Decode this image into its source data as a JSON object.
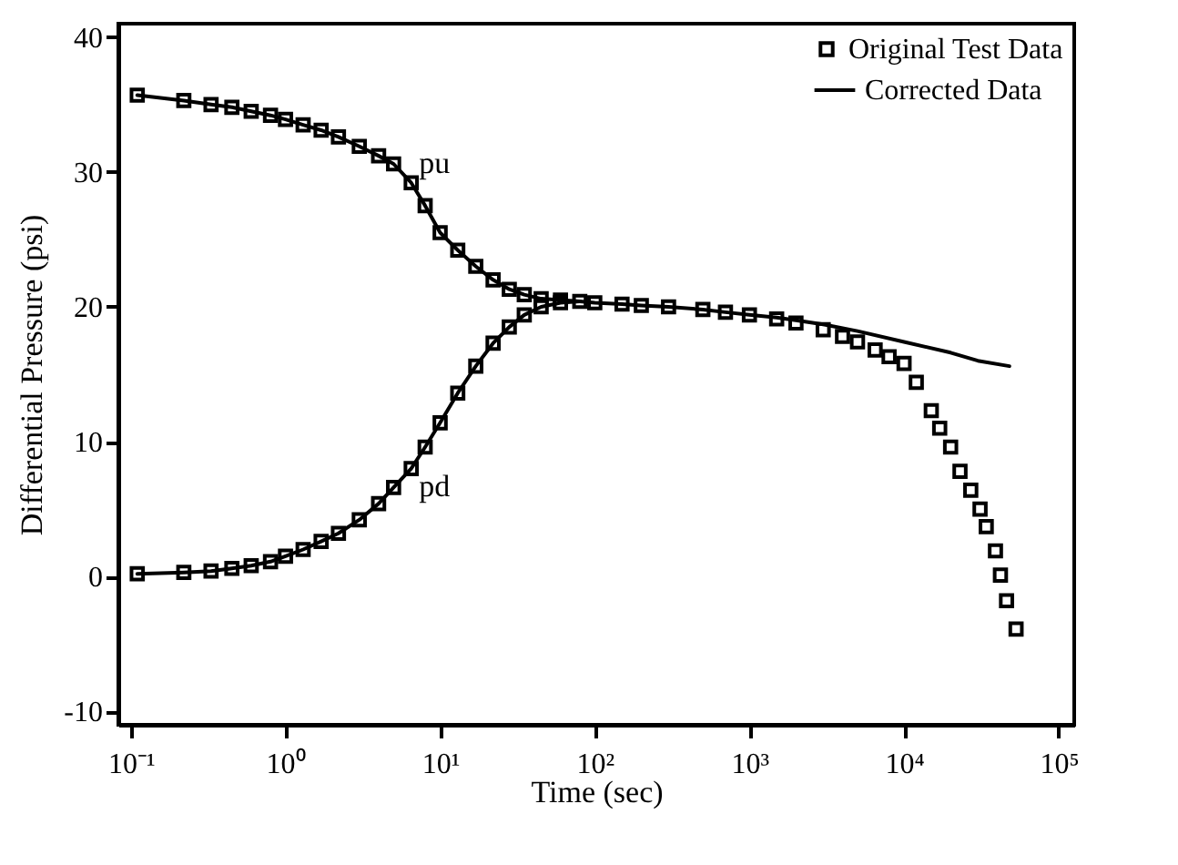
{
  "chart_data": {
    "type": "scatter",
    "xlabel": "Time (sec)",
    "ylabel": "Differential Pressure (psi)",
    "log": "x",
    "xlim": [
      0.083,
      126000
    ],
    "xticks": [
      {
        "value": 0.1,
        "label": "10⁻¹"
      },
      {
        "value": 1,
        "label": "10⁰"
      },
      {
        "value": 10,
        "label": "10¹"
      },
      {
        "value": 100,
        "label": "10²"
      },
      {
        "value": 1000,
        "label": "10³"
      },
      {
        "value": 10000,
        "label": "10⁴"
      },
      {
        "value": 100000,
        "label": "10⁵"
      }
    ],
    "ylim": [
      -11,
      41
    ],
    "yticks": [
      -10,
      0,
      10,
      20,
      30,
      40
    ],
    "grid": false,
    "legend": "top right",
    "annotations": [
      {
        "text": "pu",
        "x": 5,
        "y": 30.6
      },
      {
        "text": "pd",
        "x": 5,
        "y": 6.6
      }
    ],
    "series": [
      {
        "name": "Original Test Data",
        "marker": "square",
        "color": "#000000",
        "x": [
          0.11,
          0.22,
          0.33,
          0.45,
          0.6,
          0.8,
          1,
          1.3,
          1.7,
          2.2,
          3,
          4,
          5,
          6.5,
          8,
          10,
          13,
          17,
          22,
          28,
          35,
          45,
          60,
          0.11,
          0.22,
          0.33,
          0.45,
          0.6,
          0.8,
          1,
          1.3,
          1.7,
          2.2,
          3,
          4,
          5,
          6.5,
          8,
          10,
          13,
          17,
          22,
          28,
          35,
          45,
          60,
          80,
          100,
          150,
          200,
          300,
          500,
          700,
          1000,
          1500,
          2000,
          3000,
          4000,
          5000,
          6500,
          8000,
          10000,
          12000,
          15000,
          17000,
          20000,
          23000,
          27000,
          31000,
          34000,
          39000,
          42000,
          46000,
          53000
        ],
        "values": [
          35.7,
          35.3,
          35.0,
          34.8,
          34.5,
          34.2,
          33.9,
          33.5,
          33.1,
          32.6,
          31.9,
          31.2,
          30.6,
          29.2,
          27.5,
          25.5,
          24.2,
          23.0,
          22.0,
          21.3,
          20.9,
          20.6,
          20.5,
          0.2,
          0.3,
          0.4,
          0.6,
          0.8,
          1.1,
          1.5,
          2.0,
          2.6,
          3.2,
          4.2,
          5.4,
          6.6,
          8.0,
          9.6,
          11.4,
          13.6,
          15.6,
          17.3,
          18.5,
          19.4,
          20.0,
          20.3,
          20.4,
          20.3,
          20.2,
          20.1,
          20.0,
          19.8,
          19.6,
          19.4,
          19.1,
          18.8,
          18.3,
          17.8,
          17.4,
          16.8,
          16.3,
          15.8,
          14.4,
          12.3,
          11.0,
          9.6,
          7.8,
          6.4,
          5.0,
          3.7,
          1.9,
          0.1,
          -1.8,
          -3.9
        ]
      },
      {
        "name": "Corrected Data",
        "type": "line",
        "line_style": "solid",
        "marker": "none",
        "color": "#000000",
        "x": [
          0.11,
          0.22,
          0.33,
          0.45,
          0.6,
          0.8,
          1,
          1.3,
          1.7,
          2.2,
          3,
          4,
          5,
          6.5,
          8,
          10,
          13,
          17,
          22,
          28,
          35,
          45,
          60,
          80,
          100,
          150,
          200,
          300,
          500,
          700,
          1000,
          1500,
          2000,
          3000,
          5000,
          10000,
          20000,
          30000,
          48000
        ],
        "values": [
          35.7,
          35.3,
          35.0,
          34.8,
          34.5,
          34.2,
          33.9,
          33.5,
          33.1,
          32.6,
          31.9,
          31.2,
          30.6,
          29.2,
          27.5,
          25.5,
          24.2,
          23.0,
          22.0,
          21.3,
          20.9,
          20.6,
          20.5,
          20.4,
          20.3,
          20.2,
          20.1,
          20.0,
          19.8,
          19.6,
          19.4,
          19.2,
          19.0,
          18.7,
          18.2,
          17.4,
          16.6,
          16.0,
          15.6
        ]
      },
      {
        "type": "line",
        "line_style": "solid",
        "marker": "none",
        "color": "#000000",
        "x": [
          0.11,
          0.22,
          0.33,
          0.45,
          0.6,
          0.8,
          1,
          1.3,
          1.7,
          2.2,
          3,
          4,
          5,
          6.5,
          8,
          10,
          13,
          17,
          22,
          28,
          35,
          45,
          60,
          80
        ],
        "values": [
          0.2,
          0.3,
          0.4,
          0.6,
          0.8,
          1.1,
          1.5,
          2.0,
          2.6,
          3.2,
          4.2,
          5.4,
          6.6,
          8.0,
          9.6,
          11.4,
          13.6,
          15.6,
          17.3,
          18.5,
          19.4,
          20.0,
          20.3,
          20.4
        ]
      }
    ]
  }
}
